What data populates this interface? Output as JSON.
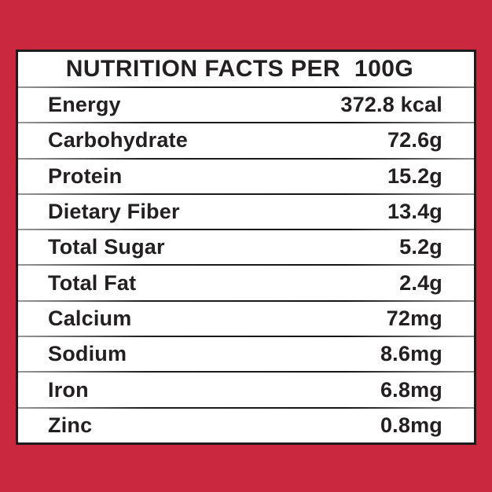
{
  "colors": {
    "page_background": "#C9283F",
    "card_background": "#FFFFFF",
    "border": "#1D1B1C",
    "text": "#232021"
  },
  "table": {
    "title": "NUTRITION FACTS PER  100G",
    "rows": [
      {
        "label": "Energy",
        "value": "372.8 kcal"
      },
      {
        "label": "Carbohydrate",
        "value": "72.6g"
      },
      {
        "label": "Protein",
        "value": "15.2g"
      },
      {
        "label": "Dietary Fiber",
        "value": "13.4g"
      },
      {
        "label": "Total Sugar",
        "value": "5.2g"
      },
      {
        "label": "Total Fat",
        "value": "2.4g"
      },
      {
        "label": "Calcium",
        "value": "72mg"
      },
      {
        "label": "Sodium",
        "value": "8.6mg"
      },
      {
        "label": "Iron",
        "value": "6.8mg"
      },
      {
        "label": "Zinc",
        "value": "0.8mg"
      }
    ]
  }
}
